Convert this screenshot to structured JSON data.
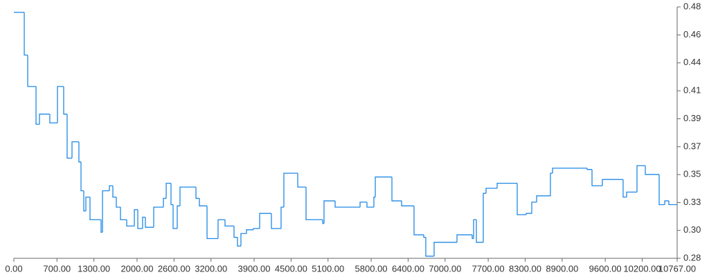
{
  "chart_data": {
    "type": "line",
    "step": "after",
    "color": "#1e88e5",
    "x": [
      0,
      169,
      225,
      360,
      416,
      584,
      708,
      809,
      865,
      944,
      1056,
      1090,
      1135,
      1169,
      1236,
      1416,
      1439,
      1551,
      1607,
      1663,
      1731,
      1832,
      1956,
      2012,
      2090,
      2135,
      2270,
      2428,
      2473,
      2551,
      2585,
      2652,
      2697,
      2956,
      3012,
      3136,
      3315,
      3428,
      3574,
      3630,
      3686,
      3776,
      3889,
      3990,
      4181,
      4338,
      4383,
      4608,
      4743,
      5013,
      5035,
      5215,
      5620,
      5732,
      5844,
      5867,
      6137,
      6294,
      6496,
      6653,
      6687,
      6822,
      7193,
      7440,
      7463,
      7508,
      7620,
      7665,
      7845,
      8171,
      8317,
      8407,
      8486,
      8710,
      8744,
      9306,
      9385,
      9553,
      9834,
      9890,
      9947,
      10115,
      10250,
      10475,
      10565,
      10632,
      10767
    ],
    "values": [
      0.477,
      0.443,
      0.418,
      0.388,
      0.396,
      0.389,
      0.418,
      0.396,
      0.361,
      0.374,
      0.358,
      0.335,
      0.319,
      0.33,
      0.312,
      0.302,
      0.335,
      0.339,
      0.33,
      0.322,
      0.312,
      0.307,
      0.32,
      0.305,
      0.314,
      0.306,
      0.322,
      0.329,
      0.341,
      0.324,
      0.305,
      0.323,
      0.338,
      0.329,
      0.323,
      0.297,
      0.312,
      0.307,
      0.298,
      0.291,
      0.301,
      0.304,
      0.305,
      0.317,
      0.305,
      0.322,
      0.349,
      0.338,
      0.312,
      0.309,
      0.327,
      0.322,
      0.326,
      0.322,
      0.33,
      0.346,
      0.327,
      0.323,
      0.3,
      0.298,
      0.283,
      0.294,
      0.3,
      0.297,
      0.312,
      0.294,
      0.333,
      0.337,
      0.341,
      0.316,
      0.317,
      0.326,
      0.331,
      0.349,
      0.353,
      0.352,
      0.339,
      0.344,
      0.344,
      0.33,
      0.334,
      0.355,
      0.348,
      0.324,
      0.327,
      0.324,
      0.324
    ],
    "xlim": [
      0,
      10767
    ],
    "xticks": [
      {
        "value": 0,
        "label": "0.00"
      },
      {
        "value": 700,
        "label": "700.00"
      },
      {
        "value": 1300,
        "label": "1300.00"
      },
      {
        "value": 2000,
        "label": "2000.00"
      },
      {
        "value": 2600,
        "label": "2600.00"
      },
      {
        "value": 3200,
        "label": "3200.00"
      },
      {
        "value": 3900,
        "label": "3900.00"
      },
      {
        "value": 4500,
        "label": "4500.00"
      },
      {
        "value": 5100,
        "label": "5100.00"
      },
      {
        "value": 5800,
        "label": "5800.00"
      },
      {
        "value": 6400,
        "label": "6400.00"
      },
      {
        "value": 7000,
        "label": "7000.00"
      },
      {
        "value": 7700,
        "label": "7700.00"
      },
      {
        "value": 8300,
        "label": "8300.00"
      },
      {
        "value": 8900,
        "label": "8900.00"
      },
      {
        "value": 9600,
        "label": "9600.00"
      },
      {
        "value": 10200,
        "label": "10200.00"
      },
      {
        "value": 10767,
        "label": "10767.00"
      }
    ],
    "ylim": [
      0.2813,
      0.4813
    ],
    "yticks": [
      {
        "value": 0.2813,
        "label": "0.28"
      },
      {
        "value": 0.3035,
        "label": "0.30"
      },
      {
        "value": 0.3257,
        "label": "0.33"
      },
      {
        "value": 0.3479,
        "label": "0.35"
      },
      {
        "value": 0.3701,
        "label": "0.37"
      },
      {
        "value": 0.3923,
        "label": "0.39"
      },
      {
        "value": 0.4146,
        "label": "0.41"
      },
      {
        "value": 0.4368,
        "label": "0.44"
      },
      {
        "value": 0.459,
        "label": "0.46"
      },
      {
        "value": 0.4813,
        "label": "0.48"
      }
    ]
  }
}
